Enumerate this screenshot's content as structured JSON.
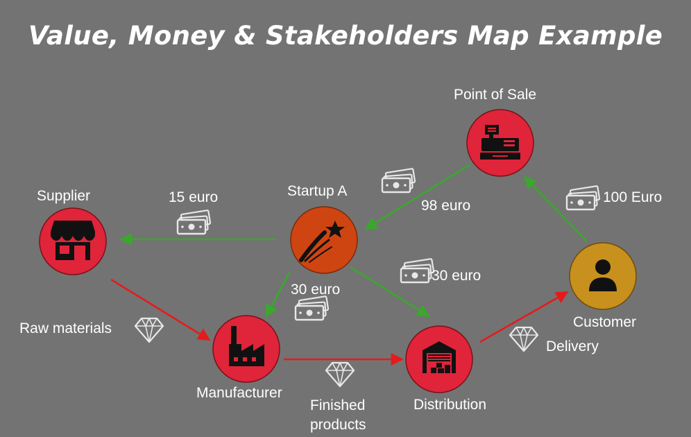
{
  "title": "Value, Money & Stakeholders Map Example",
  "colors": {
    "background": "#737373",
    "node_red": "#e0243a",
    "startup_orange": "#cf4512",
    "customer_gold": "#c8901c",
    "money_flow": "#3aa82c",
    "value_flow": "#e51b1b",
    "icon_outline": "#e8e8e8"
  },
  "nodes": {
    "point_of_sale": {
      "label": "Point of Sale",
      "icon": "cash-register-icon"
    },
    "supplier": {
      "label": "Supplier",
      "icon": "storefront-icon"
    },
    "startup": {
      "label": "Startup A",
      "icon": "shooting-star-icon"
    },
    "customer": {
      "label": "Customer",
      "icon": "person-icon"
    },
    "manufacturer": {
      "label": "Manufacturer",
      "icon": "factory-icon"
    },
    "distribution": {
      "label": "Distribution",
      "icon": "warehouse-icon"
    }
  },
  "money_flows": {
    "customer_to_pos": "100 Euro",
    "pos_to_startup": "98 euro",
    "startup_to_supplier": "15 euro",
    "startup_to_manufacturer": "30 euro",
    "startup_to_distribution": "30 euro"
  },
  "value_flows": {
    "supplier_to_manufacturer": "Raw materials",
    "manufacturer_to_distribution_line1": "Finished",
    "manufacturer_to_distribution_line2": "products",
    "distribution_to_customer": "Delivery"
  }
}
